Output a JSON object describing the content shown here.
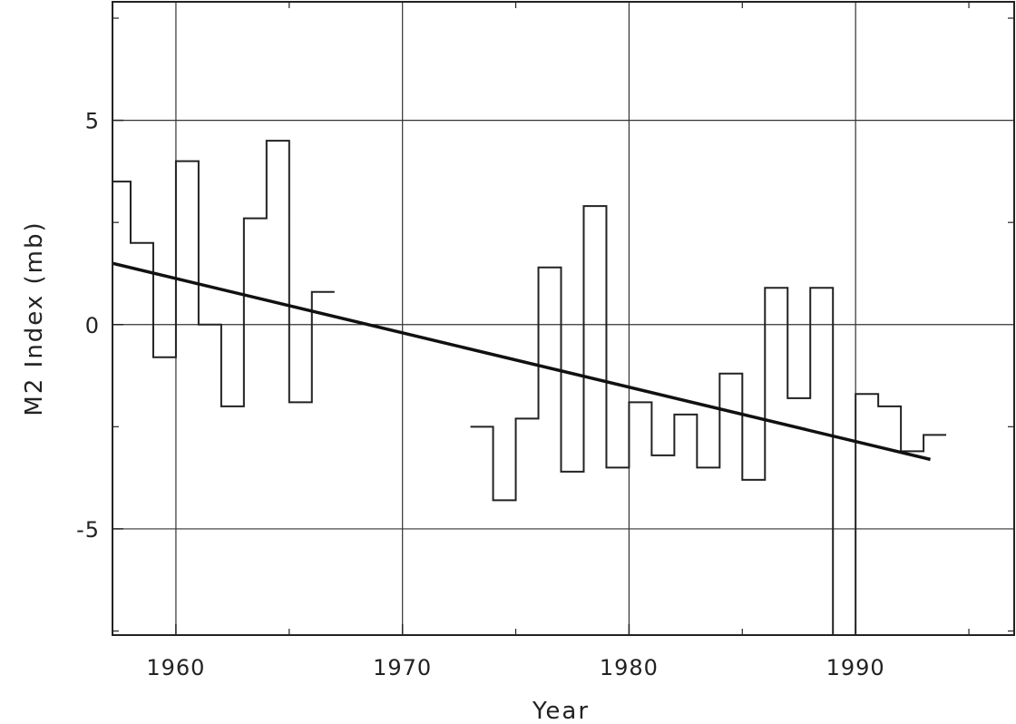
{
  "chart_data": {
    "type": "line",
    "title": "",
    "xlabel": "Year",
    "ylabel": "M2 Index (mb)",
    "xlim": [
      1957.2,
      1997.0
    ],
    "ylim": [
      -7.6,
      7.9
    ],
    "grid": true,
    "xticks": [
      1960,
      1970,
      1980,
      1990
    ],
    "xtick_labels": [
      "1960",
      "1970",
      "1980",
      "1990"
    ],
    "yticks": [
      -5,
      0,
      5
    ],
    "ytick_labels": [
      "-5",
      "0",
      "5"
    ],
    "series": [
      {
        "style": "step",
        "segments": [
          {
            "x": [
              1957,
              1958,
              1959,
              1960,
              1961,
              1962,
              1963,
              1964,
              1965,
              1966
            ],
            "y": [
              3.5,
              2.0,
              -0.8,
              4.0,
              0.0,
              -2.0,
              2.6,
              4.5,
              -1.9,
              0.8
            ]
          },
          {
            "x": [
              1973,
              1974,
              1975,
              1976,
              1977,
              1978,
              1979,
              1980,
              1981,
              1982,
              1983,
              1984,
              1985,
              1986,
              1987,
              1988,
              1989,
              1990,
              1991,
              1992,
              1993
            ],
            "y": [
              -2.5,
              -4.3,
              -2.3,
              1.4,
              -3.6,
              2.9,
              -3.5,
              -1.9,
              -3.2,
              -2.2,
              -3.5,
              -1.2,
              -3.8,
              0.9,
              -1.8,
              0.9,
              -7.6,
              -1.7,
              -2.0,
              -3.1,
              -2.7
            ]
          }
        ]
      },
      {
        "style": "trend",
        "x": [
          1957.2,
          1993.3
        ],
        "y": [
          1.5,
          -3.3
        ]
      }
    ]
  }
}
